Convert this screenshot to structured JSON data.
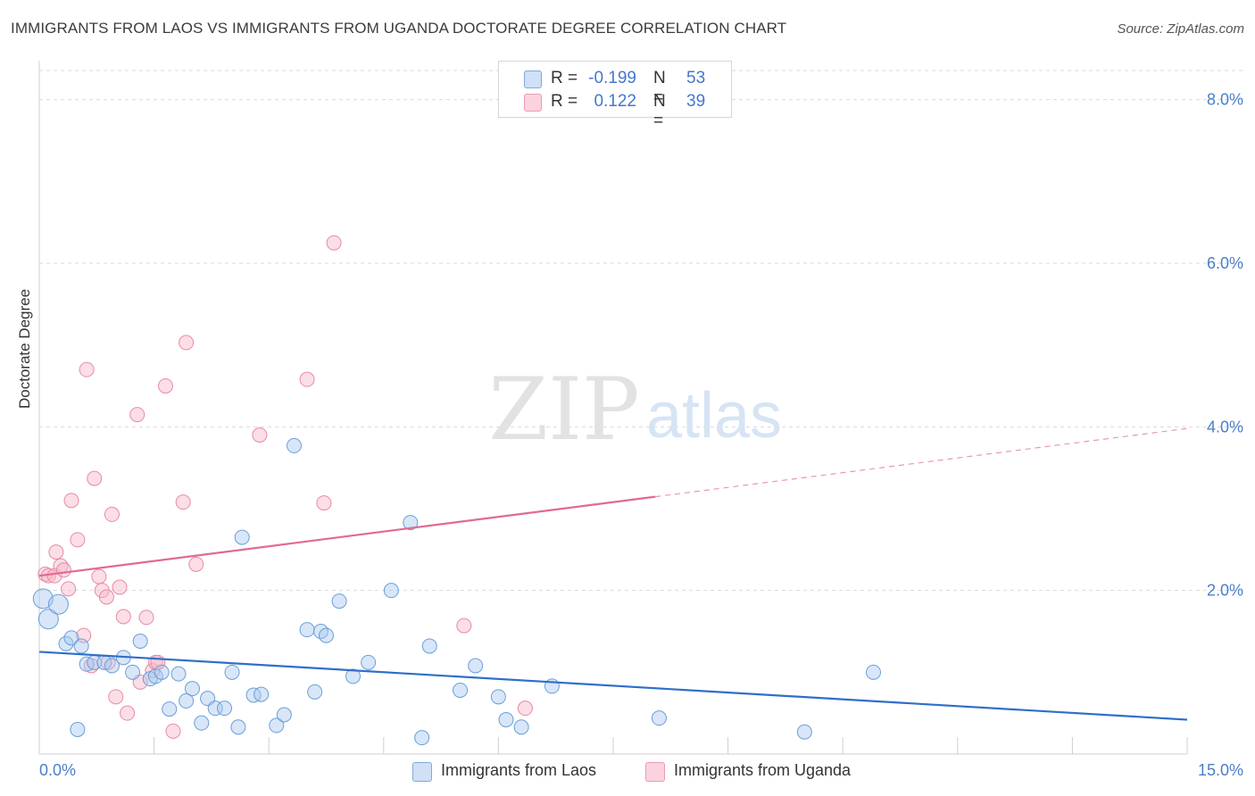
{
  "title": "IMMIGRANTS FROM LAOS VS IMMIGRANTS FROM UGANDA DOCTORATE DEGREE CORRELATION CHART",
  "source": "Source: ZipAtlas.com",
  "watermark": {
    "zip": "ZIP",
    "atlas": "atlas"
  },
  "legend_top": {
    "rows": [
      {
        "r_label": "R =",
        "r_value": "-0.199",
        "n_label": "N =",
        "n_value": "53",
        "color": "#a8c8f0"
      },
      {
        "r_label": "R =",
        "r_value": "0.122",
        "n_label": "N =",
        "n_value": "39",
        "color": "#f7b6c8"
      }
    ]
  },
  "colors": {
    "laos_fill": "#a8c8f0",
    "laos_stroke": "#6a9fd8",
    "laos_line": "#2f6fc9",
    "uganda_fill": "#f7b6c8",
    "uganda_stroke": "#e88aa6",
    "uganda_line": "#e06a92",
    "tick_text": "#4a7fc8",
    "grid": "#d9d9d9"
  },
  "chart_data": {
    "type": "scatter",
    "title": "IMMIGRANTS FROM LAOS VS IMMIGRANTS FROM UGANDA DOCTORATE DEGREE CORRELATION CHART",
    "xlabel": "",
    "ylabel": "Doctorate Degree",
    "xlim": [
      0,
      15
    ],
    "ylim": [
      0,
      8.4
    ],
    "x_tick_labels": [
      "0.0%",
      "15.0%"
    ],
    "y_ticks": [
      2,
      4,
      6,
      8
    ],
    "y_tick_labels": [
      "2.0%",
      "4.0%",
      "6.0%",
      "8.0%"
    ],
    "grid": true,
    "series": [
      {
        "name": "Immigrants from Laos",
        "r": -0.199,
        "n": 53,
        "trend": {
          "x": [
            0,
            15
          ],
          "y": [
            1.25,
            0.42
          ]
        },
        "points": [
          [
            0.05,
            1.9
          ],
          [
            0.12,
            1.65
          ],
          [
            0.25,
            1.83
          ],
          [
            0.35,
            1.35
          ],
          [
            0.42,
            1.42
          ],
          [
            0.55,
            1.32
          ],
          [
            0.62,
            1.1
          ],
          [
            0.72,
            1.12
          ],
          [
            0.85,
            1.12
          ],
          [
            0.95,
            1.08
          ],
          [
            1.1,
            1.18
          ],
          [
            1.22,
            1.0
          ],
          [
            1.32,
            1.38
          ],
          [
            1.45,
            0.92
          ],
          [
            1.52,
            0.95
          ],
          [
            1.6,
            1.0
          ],
          [
            1.7,
            0.55
          ],
          [
            1.82,
            0.98
          ],
          [
            1.92,
            0.65
          ],
          [
            2.0,
            0.8
          ],
          [
            2.12,
            0.38
          ],
          [
            2.2,
            0.68
          ],
          [
            2.3,
            0.56
          ],
          [
            2.42,
            0.56
          ],
          [
            2.52,
            1.0
          ],
          [
            2.6,
            0.33
          ],
          [
            2.65,
            2.65
          ],
          [
            2.8,
            0.72
          ],
          [
            2.9,
            0.73
          ],
          [
            3.1,
            0.35
          ],
          [
            3.2,
            0.48
          ],
          [
            3.33,
            3.77
          ],
          [
            3.5,
            1.52
          ],
          [
            3.6,
            0.76
          ],
          [
            3.68,
            1.5
          ],
          [
            3.75,
            1.45
          ],
          [
            3.92,
            1.87
          ],
          [
            4.1,
            0.95
          ],
          [
            4.3,
            1.12
          ],
          [
            4.6,
            2.0
          ],
          [
            4.85,
            2.83
          ],
          [
            5.0,
            0.2
          ],
          [
            5.1,
            1.32
          ],
          [
            5.5,
            0.78
          ],
          [
            5.7,
            1.08
          ],
          [
            6.0,
            0.7
          ],
          [
            6.1,
            0.42
          ],
          [
            6.3,
            0.33
          ],
          [
            6.7,
            0.83
          ],
          [
            8.1,
            0.44
          ],
          [
            10.0,
            0.27
          ],
          [
            10.9,
            1.0
          ],
          [
            0.5,
            0.3
          ]
        ]
      },
      {
        "name": "Immigrants from Uganda",
        "r": 0.122,
        "n": 39,
        "trend": {
          "x": [
            0,
            15
          ],
          "y": [
            2.18,
            3.98
          ]
        },
        "trend_solid_end_x": 8.05,
        "points": [
          [
            0.08,
            2.2
          ],
          [
            0.12,
            2.18
          ],
          [
            0.2,
            2.18
          ],
          [
            0.22,
            2.47
          ],
          [
            0.28,
            2.3
          ],
          [
            0.32,
            2.25
          ],
          [
            0.38,
            2.02
          ],
          [
            0.42,
            3.1
          ],
          [
            0.5,
            2.62
          ],
          [
            0.58,
            1.45
          ],
          [
            0.62,
            4.7
          ],
          [
            0.68,
            1.08
          ],
          [
            0.72,
            3.37
          ],
          [
            0.78,
            2.17
          ],
          [
            0.82,
            2.0
          ],
          [
            0.88,
            1.92
          ],
          [
            0.9,
            1.12
          ],
          [
            0.95,
            2.93
          ],
          [
            1.0,
            0.7
          ],
          [
            1.05,
            2.04
          ],
          [
            1.1,
            1.68
          ],
          [
            1.15,
            0.5
          ],
          [
            1.28,
            4.15
          ],
          [
            1.32,
            0.88
          ],
          [
            1.4,
            1.67
          ],
          [
            1.48,
            1.02
          ],
          [
            1.52,
            1.12
          ],
          [
            1.55,
            1.12
          ],
          [
            1.65,
            4.5
          ],
          [
            1.75,
            0.28
          ],
          [
            1.88,
            3.08
          ],
          [
            1.92,
            5.03
          ],
          [
            2.05,
            2.32
          ],
          [
            2.88,
            3.9
          ],
          [
            3.5,
            4.58
          ],
          [
            3.72,
            3.07
          ],
          [
            3.85,
            6.25
          ],
          [
            5.55,
            1.57
          ],
          [
            6.35,
            0.56
          ]
        ]
      }
    ]
  },
  "legend_bottom": [
    {
      "label": "Immigrants from Laos",
      "color": "#a8c8f0"
    },
    {
      "label": "Immigrants from Uganda",
      "color": "#f7b6c8"
    }
  ]
}
